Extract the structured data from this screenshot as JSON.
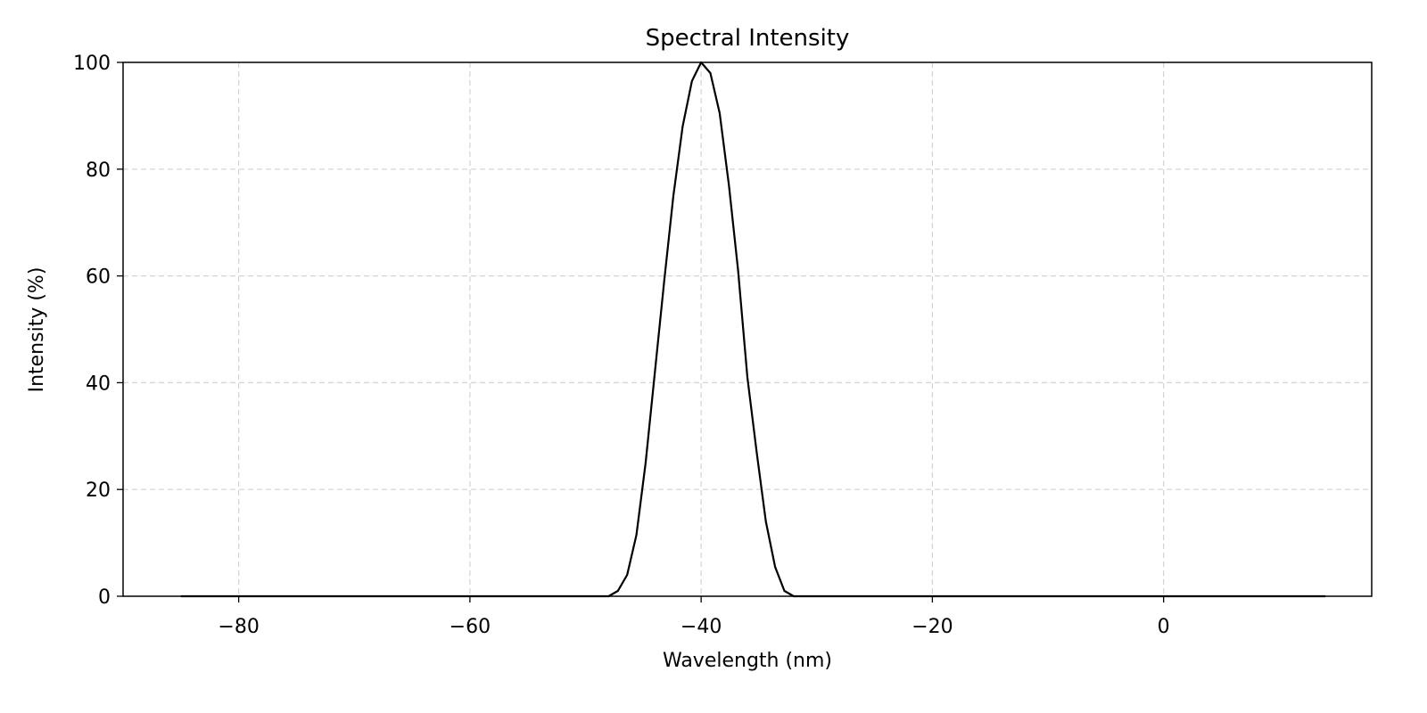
{
  "chart_data": {
    "type": "line",
    "title": "Spectral Intensity",
    "xlabel": "Wavelength (nm)",
    "ylabel": "Intensity (%)",
    "xlim": [
      -90,
      18
    ],
    "ylim": [
      0,
      100
    ],
    "xticks": [
      -80,
      -60,
      -40,
      -20,
      0
    ],
    "xtick_labels": [
      "−80",
      "−60",
      "−40",
      "−20",
      "0"
    ],
    "yticks": [
      0,
      20,
      40,
      60,
      80,
      100
    ],
    "ytick_labels": [
      "0",
      "20",
      "40",
      "60",
      "80",
      "100"
    ],
    "grid": true,
    "colors": {
      "line": "#000000",
      "grid": "#d3d3d3"
    },
    "series": [
      {
        "x": [
          -85,
          -80,
          -70,
          -60,
          -50,
          -48,
          -47.2,
          -46.4,
          -45.6,
          -44.8,
          -44.0,
          -43.2,
          -42.4,
          -41.6,
          -40.8,
          -40.0,
          -39.2,
          -38.4,
          -37.6,
          -36.8,
          -36.0,
          -35.2,
          -34.4,
          -33.6,
          -32.8,
          -32.0,
          -25,
          -20,
          -10,
          0,
          10,
          14
        ],
        "y": [
          0,
          0,
          0,
          0,
          0,
          0,
          1,
          4,
          11.5,
          25,
          42,
          59,
          75,
          88,
          96.5,
          100,
          98,
          90.5,
          77,
          61,
          41,
          27,
          14,
          5.5,
          1,
          0,
          0,
          0,
          0,
          0,
          0,
          0
        ]
      }
    ]
  }
}
